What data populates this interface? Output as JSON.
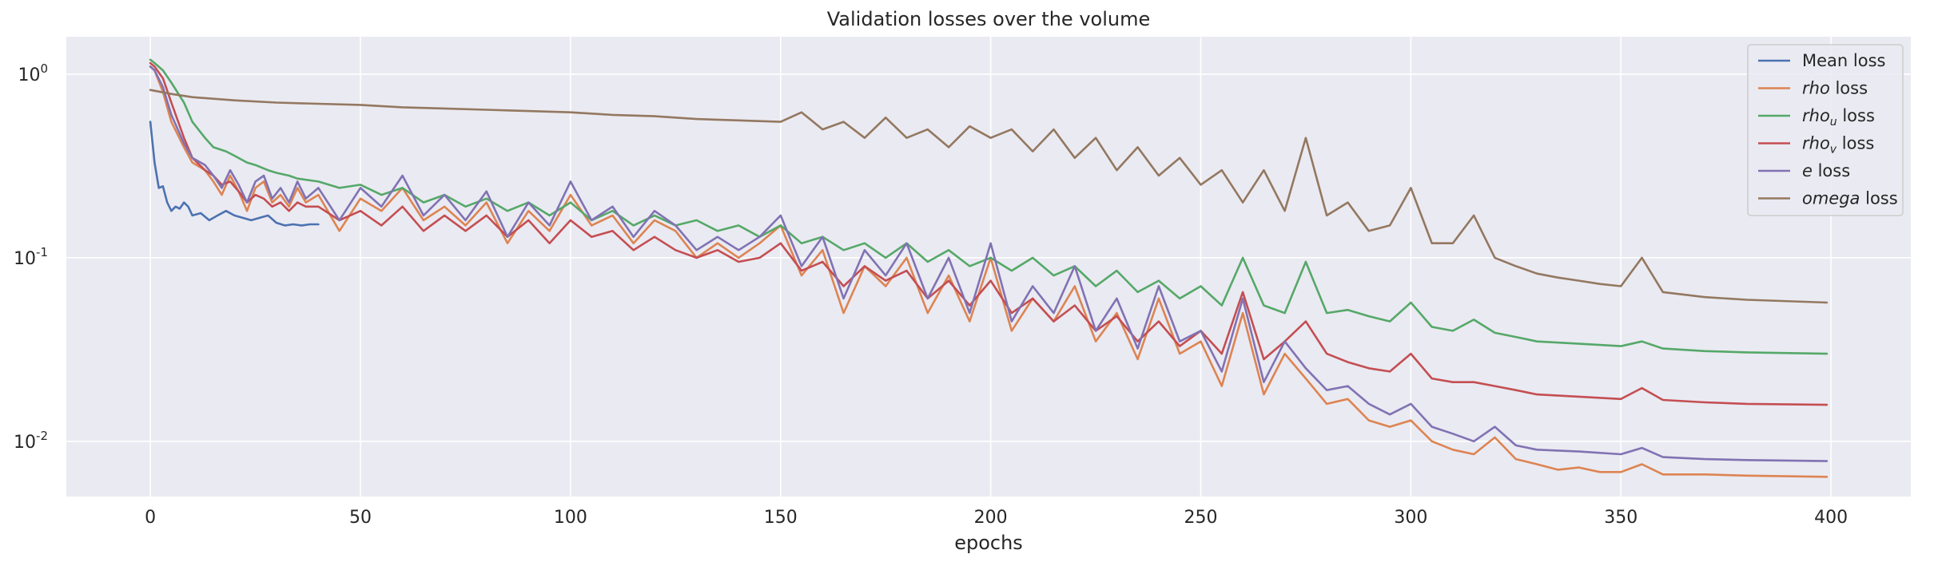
{
  "chart_data": {
    "type": "line",
    "title": "Validation losses over the volume",
    "xlabel": "epochs",
    "ylabel": "",
    "yscale": "log",
    "xlim": [
      -20,
      419
    ],
    "ylim": [
      0.005,
      1.6
    ],
    "xticks": [
      0,
      50,
      100,
      150,
      200,
      250,
      300,
      350,
      400
    ],
    "yticks": [
      {
        "value": 0.01,
        "base": "10",
        "exp": "-2"
      },
      {
        "value": 0.1,
        "base": "10",
        "exp": "-1"
      },
      {
        "value": 1,
        "base": "10",
        "exp": "0"
      }
    ],
    "grid": true,
    "background": "#eaeaf2",
    "legend_position": "top-right",
    "series": [
      {
        "name": "Mean loss",
        "legend": {
          "main": "Mean loss",
          "sub": "",
          "rest": ""
        },
        "color": "#4c72b0",
        "x": [
          0,
          1,
          2,
          3,
          4,
          5,
          6,
          7,
          8,
          9,
          10,
          12,
          14,
          16,
          18,
          20,
          22,
          24,
          26,
          28,
          30,
          32,
          34,
          36,
          38,
          40
        ],
        "y": [
          0.55,
          0.33,
          0.24,
          0.245,
          0.2,
          0.18,
          0.19,
          0.185,
          0.2,
          0.19,
          0.17,
          0.175,
          0.16,
          0.17,
          0.18,
          0.17,
          0.165,
          0.16,
          0.165,
          0.17,
          0.155,
          0.15,
          0.152,
          0.15,
          0.152,
          0.152
        ]
      },
      {
        "name": "rho loss",
        "legend": {
          "main": "rho",
          "sub": "",
          "rest": " loss"
        },
        "color": "#dd8452",
        "x": [
          0,
          1,
          3,
          5,
          8,
          10,
          13,
          15,
          17,
          19,
          21,
          23,
          25,
          27,
          29,
          31,
          33,
          35,
          37,
          40,
          45,
          50,
          55,
          60,
          65,
          70,
          75,
          80,
          85,
          90,
          95,
          100,
          105,
          110,
          115,
          120,
          125,
          130,
          135,
          140,
          145,
          150,
          155,
          160,
          165,
          170,
          175,
          180,
          185,
          190,
          195,
          200,
          205,
          210,
          215,
          220,
          225,
          230,
          235,
          240,
          245,
          250,
          255,
          260,
          265,
          270,
          275,
          280,
          285,
          290,
          295,
          300,
          305,
          310,
          315,
          320,
          325,
          330,
          335,
          340,
          345,
          350,
          355,
          360,
          370,
          380,
          399
        ],
        "y": [
          1.1,
          1.05,
          0.8,
          0.55,
          0.4,
          0.33,
          0.3,
          0.26,
          0.22,
          0.28,
          0.23,
          0.18,
          0.24,
          0.26,
          0.2,
          0.22,
          0.19,
          0.24,
          0.2,
          0.22,
          0.14,
          0.21,
          0.18,
          0.24,
          0.16,
          0.19,
          0.15,
          0.2,
          0.12,
          0.18,
          0.14,
          0.22,
          0.15,
          0.17,
          0.12,
          0.16,
          0.14,
          0.1,
          0.12,
          0.1,
          0.12,
          0.15,
          0.08,
          0.11,
          0.05,
          0.09,
          0.07,
          0.1,
          0.05,
          0.08,
          0.045,
          0.1,
          0.04,
          0.06,
          0.045,
          0.07,
          0.035,
          0.05,
          0.028,
          0.06,
          0.03,
          0.035,
          0.02,
          0.05,
          0.018,
          0.03,
          0.022,
          0.016,
          0.017,
          0.013,
          0.012,
          0.013,
          0.01,
          0.009,
          0.0085,
          0.0105,
          0.008,
          0.0075,
          0.007,
          0.0072,
          0.0068,
          0.0068,
          0.0075,
          0.0066,
          0.0066,
          0.0065,
          0.0064
        ]
      },
      {
        "name": "rho_u loss",
        "legend": {
          "main": "rho",
          "sub": "u",
          "rest": " loss"
        },
        "color": "#55a868",
        "x": [
          0,
          1,
          3,
          5,
          8,
          10,
          13,
          15,
          18,
          20,
          23,
          25,
          28,
          30,
          33,
          35,
          40,
          45,
          50,
          55,
          60,
          65,
          70,
          75,
          80,
          85,
          90,
          95,
          100,
          105,
          110,
          115,
          120,
          125,
          130,
          135,
          140,
          145,
          150,
          155,
          160,
          165,
          170,
          175,
          180,
          185,
          190,
          195,
          200,
          205,
          210,
          215,
          220,
          225,
          230,
          235,
          240,
          245,
          250,
          255,
          260,
          265,
          270,
          275,
          280,
          285,
          290,
          295,
          300,
          305,
          310,
          315,
          320,
          325,
          330,
          340,
          350,
          355,
          360,
          370,
          380,
          399
        ],
        "y": [
          1.2,
          1.15,
          1.05,
          0.9,
          0.7,
          0.55,
          0.45,
          0.4,
          0.38,
          0.36,
          0.33,
          0.32,
          0.3,
          0.29,
          0.28,
          0.27,
          0.26,
          0.24,
          0.25,
          0.22,
          0.24,
          0.2,
          0.22,
          0.19,
          0.21,
          0.18,
          0.2,
          0.17,
          0.2,
          0.16,
          0.18,
          0.15,
          0.17,
          0.15,
          0.16,
          0.14,
          0.15,
          0.13,
          0.15,
          0.12,
          0.13,
          0.11,
          0.12,
          0.1,
          0.12,
          0.095,
          0.11,
          0.09,
          0.1,
          0.085,
          0.1,
          0.08,
          0.09,
          0.07,
          0.085,
          0.065,
          0.075,
          0.06,
          0.07,
          0.055,
          0.1,
          0.055,
          0.05,
          0.095,
          0.05,
          0.052,
          0.048,
          0.045,
          0.057,
          0.042,
          0.04,
          0.046,
          0.039,
          0.037,
          0.035,
          0.034,
          0.033,
          0.035,
          0.032,
          0.031,
          0.0305,
          0.03
        ]
      },
      {
        "name": "rho_v loss",
        "legend": {
          "main": "rho",
          "sub": "v",
          "rest": " loss"
        },
        "color": "#c44e52",
        "x": [
          0,
          1,
          3,
          5,
          8,
          10,
          13,
          15,
          17,
          19,
          21,
          23,
          25,
          27,
          29,
          31,
          33,
          35,
          37,
          40,
          45,
          50,
          55,
          60,
          65,
          70,
          75,
          80,
          85,
          90,
          95,
          100,
          105,
          110,
          115,
          120,
          125,
          130,
          135,
          140,
          145,
          150,
          155,
          160,
          165,
          170,
          175,
          180,
          185,
          190,
          195,
          200,
          205,
          210,
          215,
          220,
          225,
          230,
          235,
          240,
          245,
          250,
          255,
          260,
          265,
          270,
          275,
          280,
          285,
          290,
          295,
          300,
          305,
          310,
          315,
          320,
          325,
          330,
          340,
          350,
          355,
          360,
          370,
          380,
          399
        ],
        "y": [
          1.15,
          1.1,
          0.95,
          0.7,
          0.45,
          0.35,
          0.3,
          0.28,
          0.25,
          0.26,
          0.23,
          0.2,
          0.22,
          0.21,
          0.19,
          0.2,
          0.18,
          0.2,
          0.19,
          0.19,
          0.16,
          0.18,
          0.15,
          0.19,
          0.14,
          0.17,
          0.14,
          0.17,
          0.13,
          0.16,
          0.12,
          0.16,
          0.13,
          0.14,
          0.11,
          0.13,
          0.11,
          0.1,
          0.11,
          0.095,
          0.1,
          0.12,
          0.085,
          0.095,
          0.07,
          0.09,
          0.075,
          0.085,
          0.06,
          0.075,
          0.055,
          0.075,
          0.05,
          0.06,
          0.045,
          0.055,
          0.04,
          0.048,
          0.035,
          0.045,
          0.033,
          0.04,
          0.03,
          0.065,
          0.028,
          0.035,
          0.045,
          0.03,
          0.027,
          0.025,
          0.024,
          0.03,
          0.022,
          0.021,
          0.021,
          0.02,
          0.019,
          0.018,
          0.0175,
          0.017,
          0.0195,
          0.0168,
          0.0163,
          0.016,
          0.0158
        ]
      },
      {
        "name": "e loss",
        "legend": {
          "main": "e",
          "sub": "",
          "rest": " loss"
        },
        "color": "#8172b3",
        "x": [
          0,
          1,
          3,
          5,
          8,
          10,
          13,
          15,
          17,
          19,
          21,
          23,
          25,
          27,
          29,
          31,
          33,
          35,
          37,
          40,
          45,
          50,
          55,
          60,
          65,
          70,
          75,
          80,
          85,
          90,
          95,
          100,
          105,
          110,
          115,
          120,
          125,
          130,
          135,
          140,
          145,
          150,
          155,
          160,
          165,
          170,
          175,
          180,
          185,
          190,
          195,
          200,
          205,
          210,
          215,
          220,
          225,
          230,
          235,
          240,
          245,
          250,
          255,
          260,
          265,
          270,
          275,
          280,
          285,
          290,
          295,
          300,
          305,
          310,
          315,
          320,
          325,
          330,
          340,
          350,
          355,
          360,
          370,
          380,
          399
        ],
        "y": [
          1.1,
          1.05,
          0.85,
          0.6,
          0.42,
          0.35,
          0.32,
          0.28,
          0.24,
          0.3,
          0.25,
          0.2,
          0.26,
          0.28,
          0.21,
          0.24,
          0.2,
          0.26,
          0.21,
          0.24,
          0.16,
          0.24,
          0.19,
          0.28,
          0.17,
          0.22,
          0.16,
          0.23,
          0.13,
          0.2,
          0.15,
          0.26,
          0.16,
          0.19,
          0.13,
          0.18,
          0.15,
          0.11,
          0.13,
          0.11,
          0.13,
          0.17,
          0.09,
          0.13,
          0.06,
          0.11,
          0.08,
          0.12,
          0.06,
          0.1,
          0.05,
          0.12,
          0.045,
          0.07,
          0.05,
          0.09,
          0.04,
          0.06,
          0.032,
          0.07,
          0.035,
          0.04,
          0.024,
          0.06,
          0.021,
          0.035,
          0.025,
          0.019,
          0.02,
          0.016,
          0.014,
          0.016,
          0.012,
          0.011,
          0.01,
          0.012,
          0.0095,
          0.009,
          0.0088,
          0.0085,
          0.0092,
          0.0082,
          0.008,
          0.0079,
          0.0078
        ]
      },
      {
        "name": "omega loss",
        "legend": {
          "main": "omega",
          "sub": "",
          "rest": " loss"
        },
        "color": "#937860",
        "x": [
          0,
          5,
          10,
          20,
          30,
          40,
          50,
          60,
          70,
          80,
          90,
          100,
          110,
          120,
          130,
          140,
          150,
          155,
          160,
          165,
          170,
          175,
          180,
          185,
          190,
          195,
          200,
          205,
          210,
          215,
          220,
          225,
          230,
          235,
          240,
          245,
          250,
          255,
          260,
          265,
          270,
          275,
          280,
          285,
          290,
          295,
          300,
          305,
          310,
          315,
          320,
          325,
          330,
          335,
          340,
          345,
          350,
          355,
          360,
          370,
          380,
          399
        ],
        "y": [
          0.82,
          0.78,
          0.75,
          0.72,
          0.7,
          0.69,
          0.68,
          0.66,
          0.65,
          0.64,
          0.63,
          0.62,
          0.6,
          0.59,
          0.57,
          0.56,
          0.55,
          0.62,
          0.5,
          0.55,
          0.45,
          0.58,
          0.45,
          0.5,
          0.4,
          0.52,
          0.45,
          0.5,
          0.38,
          0.5,
          0.35,
          0.45,
          0.3,
          0.4,
          0.28,
          0.35,
          0.25,
          0.3,
          0.2,
          0.3,
          0.18,
          0.45,
          0.17,
          0.2,
          0.14,
          0.15,
          0.24,
          0.12,
          0.12,
          0.17,
          0.1,
          0.09,
          0.082,
          0.078,
          0.075,
          0.072,
          0.07,
          0.1,
          0.065,
          0.061,
          0.059,
          0.057
        ]
      }
    ]
  }
}
